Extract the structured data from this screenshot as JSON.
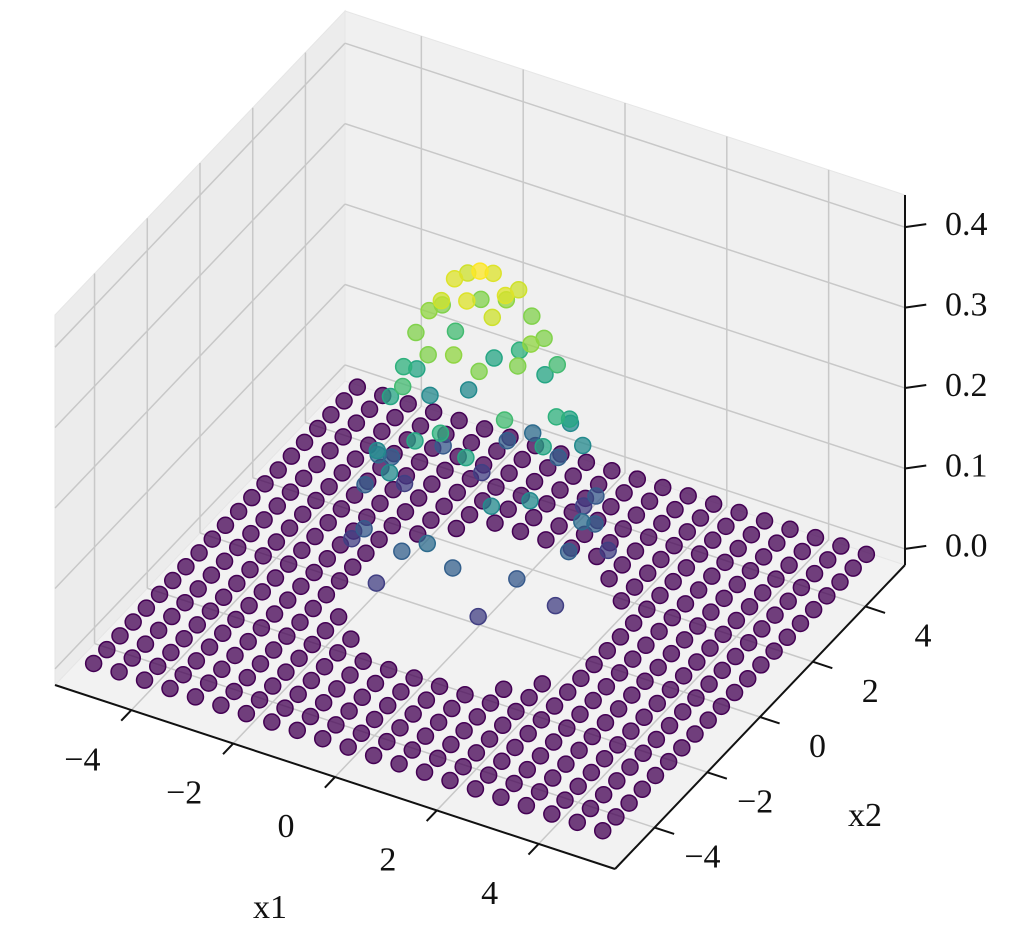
{
  "chart_data": {
    "type": "scatter3d",
    "xlabel": "x1",
    "ylabel": "x2",
    "x1": [
      -5,
      -4.5,
      -4,
      -3.5,
      -3,
      -2.5,
      -2,
      -1.5,
      -1,
      -0.5,
      0,
      0.5,
      1,
      1.5,
      2,
      2.5,
      3,
      3.5,
      4,
      4.5,
      5
    ],
    "x2": [
      -5,
      -4.5,
      -4,
      -3.5,
      -3,
      -2.5,
      -2,
      -1.5,
      -1,
      -0.5,
      0,
      0.5,
      1,
      1.5,
      2,
      2.5,
      3,
      3.5,
      4,
      4.5,
      5
    ],
    "z": [
      [
        0,
        0,
        0,
        0,
        0,
        0,
        0,
        0,
        0,
        0,
        0,
        0,
        0,
        0,
        0,
        0,
        0,
        0,
        0,
        0,
        0
      ],
      [
        0,
        0,
        0,
        0,
        0,
        0,
        0,
        0,
        0,
        0,
        0,
        0,
        0,
        0,
        0,
        0,
        0,
        0,
        0,
        0,
        0
      ],
      [
        0,
        0,
        0,
        0,
        0,
        0,
        0,
        0,
        0,
        0,
        0,
        0,
        0,
        0,
        0,
        0,
        0,
        0,
        0,
        0,
        0
      ],
      [
        0,
        0,
        0,
        0,
        0,
        0,
        0,
        0,
        0,
        0,
        0,
        0,
        0,
        0,
        0,
        0,
        0,
        0,
        0,
        0,
        0
      ],
      [
        0,
        0,
        0,
        0,
        0,
        0,
        0,
        0,
        0,
        0,
        0,
        0,
        0,
        0,
        0,
        0,
        0,
        0,
        0,
        0,
        0
      ],
      [
        0,
        0,
        0,
        0,
        0,
        0,
        0,
        0,
        0,
        0,
        0,
        0,
        0,
        0,
        0,
        0,
        0,
        0,
        0,
        0,
        0
      ],
      [
        0,
        0,
        0,
        0,
        0,
        0,
        0,
        0,
        0.08,
        0.13,
        0.15,
        0.13,
        0.08,
        0,
        0,
        0,
        0,
        0,
        0,
        0,
        0
      ],
      [
        0,
        0,
        0,
        0,
        0,
        0,
        0,
        0.12,
        0.2,
        0.25,
        0.27,
        0.25,
        0.2,
        0.12,
        0,
        0,
        0,
        0,
        0,
        0,
        0
      ],
      [
        0,
        0,
        0,
        0,
        0,
        0,
        0.08,
        0.2,
        0.29,
        0.34,
        0.35,
        0.34,
        0.29,
        0.2,
        0.08,
        0,
        0,
        0,
        0,
        0,
        0
      ],
      [
        0,
        0,
        0,
        0,
        0,
        0,
        0.13,
        0.25,
        0.34,
        0.39,
        0.4,
        0.39,
        0.34,
        0.25,
        0.13,
        0,
        0,
        0,
        0,
        0,
        0
      ],
      [
        0,
        0,
        0,
        0,
        0,
        0,
        0.15,
        0.27,
        0.35,
        0.4,
        0.42,
        0.4,
        0.35,
        0.27,
        0.15,
        0,
        0,
        0,
        0,
        0,
        0
      ],
      [
        0,
        0,
        0,
        0,
        0,
        0,
        0.13,
        0.25,
        0.34,
        0.39,
        0.4,
        0.39,
        0.34,
        0.25,
        0.13,
        0,
        0,
        0,
        0,
        0,
        0
      ],
      [
        0,
        0,
        0,
        0,
        0,
        0,
        0.08,
        0.2,
        0.29,
        0.34,
        0.35,
        0.34,
        0.29,
        0.2,
        0.08,
        0,
        0,
        0,
        0,
        0,
        0
      ],
      [
        0,
        0,
        0,
        0,
        0,
        0,
        0,
        0.12,
        0.2,
        0.25,
        0.27,
        0.25,
        0.2,
        0.12,
        0,
        0,
        0,
        0,
        0,
        0,
        0
      ],
      [
        0,
        0,
        0,
        0,
        0,
        0,
        0,
        0,
        0.08,
        0.13,
        0.15,
        0.13,
        0.08,
        0,
        0,
        0,
        0,
        0,
        0,
        0,
        0
      ],
      [
        0,
        0,
        0,
        0,
        0,
        0,
        0,
        0,
        0,
        0,
        0,
        0,
        0,
        0,
        0,
        0,
        0,
        0,
        0,
        0,
        0
      ],
      [
        0,
        0,
        0,
        0,
        0,
        0,
        0,
        0,
        0,
        0,
        0,
        0,
        0,
        0,
        0,
        0,
        0,
        0,
        0,
        0,
        0
      ],
      [
        0,
        0,
        0,
        0,
        0,
        0,
        0,
        0,
        0,
        0,
        0,
        0,
        0,
        0,
        0,
        0,
        0,
        0,
        0,
        0,
        0
      ],
      [
        0,
        0,
        0,
        0,
        0,
        0,
        0,
        0,
        0,
        0,
        0,
        0,
        0,
        0,
        0,
        0,
        0,
        0,
        0,
        0,
        0
      ],
      [
        0,
        0,
        0,
        0,
        0,
        0,
        0,
        0,
        0,
        0,
        0,
        0,
        0,
        0,
        0,
        0,
        0,
        0,
        0,
        0,
        0
      ],
      [
        0,
        0,
        0,
        0,
        0,
        0,
        0,
        0,
        0,
        0,
        0,
        0,
        0,
        0,
        0,
        0,
        0,
        0,
        0,
        0,
        0
      ]
    ],
    "colormap": "viridis",
    "xlim": [
      -5.5,
      5.5
    ],
    "ylim": [
      -5.5,
      5.5
    ],
    "zlim": [
      -0.02,
      0.44
    ],
    "xticks": [
      {
        "value": -4,
        "label": "−4"
      },
      {
        "value": -2,
        "label": "−2"
      },
      0,
      2,
      4
    ],
    "yticks": [
      {
        "value": -4,
        "label": "−4"
      },
      {
        "value": -2,
        "label": "−2"
      },
      0,
      2,
      4
    ],
    "zticks": [
      {
        "value": 0,
        "label": "0.0"
      },
      0.1,
      0.2,
      0.3,
      0.4
    ],
    "grid": true
  }
}
